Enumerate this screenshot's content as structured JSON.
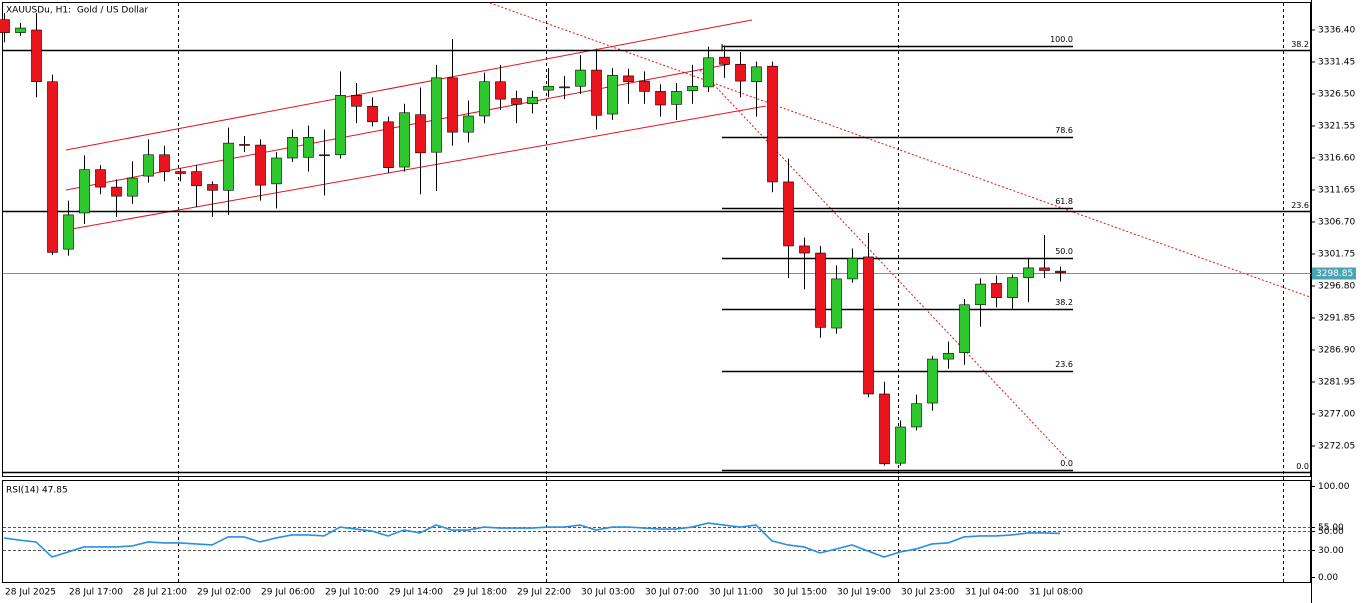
{
  "chart_data": {
    "type": "candlestick",
    "title": "XAUUSDu, H1:  Gold / US Dollar",
    "categories": [
      "28 Jul 2025",
      null,
      null,
      null,
      "28 Jul 17:00",
      null,
      null,
      null,
      "28 Jul 21:00",
      null,
      null,
      null,
      "29 Jul 02:00",
      null,
      null,
      null,
      "29 Jul 06:00",
      null,
      null,
      null,
      "29 Jul 10:00",
      null,
      null,
      null,
      "29 Jul 14:00",
      null,
      null,
      null,
      "29 Jul 18:00",
      null,
      null,
      null,
      "29 Jul 22:00",
      null,
      null,
      null,
      "30 Jul 03:00",
      null,
      null,
      null,
      "30 Jul 07:00",
      null,
      null,
      null,
      "30 Jul 11:00",
      null,
      null,
      null,
      "30 Jul 15:00",
      null,
      null,
      null,
      "30 Jul 19:00",
      null,
      null,
      null,
      "30 Jul 23:00",
      null,
      null,
      null,
      "31 Jul 04:00",
      null,
      null,
      null,
      "31 Jul 08:00",
      null,
      null
    ],
    "open": [
      3338.0,
      3336.0,
      3336.4,
      3328.4,
      3302.5,
      3308.1,
      3314.8,
      3312.1,
      3310.7,
      3313.8,
      3317.1,
      3314.5,
      3314.5,
      3312.5,
      3311.6,
      3318.7,
      3318.6,
      3312.6,
      3316.6,
      3316.7,
      3317.1,
      3317.1,
      3326.3,
      3324.6,
      3322.2,
      3315.2,
      3323.3,
      3317.5,
      3329.0,
      3320.6,
      3323.1,
      3328.4,
      3325.8,
      3325.0,
      3327.1,
      3327.6,
      3327.7,
      3330.2,
      3323.4,
      3329.3,
      3328.5,
      3326.9,
      3324.9,
      3327.0,
      3327.6,
      3332.2,
      3331.1,
      3328.4,
      3330.8,
      3312.9,
      3303.0,
      3301.9,
      3290.3,
      3297.9,
      3301.3,
      3280.1,
      3269.4,
      3275.0,
      3278.7,
      3285.5,
      3286.5,
      3293.9,
      3297.2,
      3295.0,
      3298.1,
      3299.6,
      3299.1
    ],
    "high": [
      3339.0,
      3337.5,
      3339.0,
      3329.5,
      3310.0,
      3317.0,
      3315.5,
      3313.3,
      3316.1,
      3319.5,
      3318.5,
      3315.0,
      3315.5,
      3313.0,
      3321.3,
      3320.0,
      3319.5,
      3317.5,
      3321.0,
      3321.6,
      3321.0,
      3330.0,
      3328.2,
      3326.0,
      3323.0,
      3325.0,
      3327.5,
      3331.0,
      3335.0,
      3325.5,
      3329.8,
      3331.0,
      3327.0,
      3327.0,
      3330.5,
      3329.3,
      3332.5,
      3333.5,
      3330.5,
      3330.4,
      3330.0,
      3328.0,
      3328.2,
      3331.0,
      3333.8,
      3334.0,
      3333.0,
      3331.5,
      3331.5,
      3316.5,
      3304.3,
      3303.0,
      3300.0,
      3302.6,
      3305.0,
      3282.0,
      3276.0,
      3280.0,
      3286.0,
      3288.2,
      3294.8,
      3298.0,
      3298.4,
      3298.6,
      3301.2,
      3304.7,
      3299.8
    ],
    "low": [
      3334.5,
      3335.5,
      3326.0,
      3301.6,
      3301.5,
      3306.4,
      3311.0,
      3307.5,
      3309.5,
      3312.8,
      3313.0,
      3313.0,
      3309.0,
      3307.5,
      3307.8,
      3317.5,
      3310.0,
      3308.8,
      3316.0,
      3314.5,
      3310.8,
      3316.5,
      3322.0,
      3321.5,
      3314.3,
      3314.5,
      3311.0,
      3311.5,
      3318.5,
      3319.0,
      3322.0,
      3324.0,
      3322.0,
      3323.5,
      3326.0,
      3325.7,
      3326.5,
      3321.0,
      3322.5,
      3325.0,
      3325.0,
      3323.0,
      3322.5,
      3325.0,
      3326.8,
      3329.0,
      3326.0,
      3323.0,
      3311.3,
      3298.0,
      3296.3,
      3288.8,
      3289.4,
      3297.3,
      3279.6,
      3269.0,
      3269.0,
      3274.5,
      3277.5,
      3284.0,
      3284.6,
      3290.5,
      3293.5,
      3293.3,
      3294.3,
      3298.0,
      3297.5
    ],
    "close": [
      3336.0,
      3336.7,
      3328.4,
      3302.0,
      3307.8,
      3314.8,
      3312.1,
      3310.7,
      3313.5,
      3317.1,
      3314.5,
      3314.2,
      3312.3,
      3311.6,
      3318.9,
      3318.6,
      3312.4,
      3316.6,
      3319.8,
      3319.8,
      3317.0,
      3326.3,
      3324.6,
      3322.2,
      3315.1,
      3323.6,
      3317.4,
      3329.0,
      3320.6,
      3323.1,
      3328.4,
      3325.7,
      3324.9,
      3326.0,
      3327.7,
      3327.5,
      3330.2,
      3323.2,
      3329.4,
      3328.4,
      3326.9,
      3324.8,
      3326.9,
      3327.7,
      3332.1,
      3331.1,
      3328.5,
      3330.7,
      3312.9,
      3303.0,
      3301.9,
      3290.4,
      3297.9,
      3301.1,
      3280.1,
      3269.3,
      3275.0,
      3278.6,
      3285.5,
      3286.4,
      3293.9,
      3297.1,
      3295.0,
      3298.1,
      3299.6,
      3299.2,
      3298.85
    ],
    "up_color": "#2ec82e",
    "down_color": "#e8141e",
    "ylim": [
      3267.26,
      3340.73
    ],
    "yticks": [
      {
        "value": 3336.4,
        "label": "3336.40"
      },
      {
        "value": 3331.45,
        "label": "3331.45"
      },
      {
        "value": 3326.5,
        "label": "3326.50"
      },
      {
        "value": 3321.55,
        "label": "3321.55"
      },
      {
        "value": 3316.6,
        "label": "3316.60"
      },
      {
        "value": 3311.65,
        "label": "3311.65"
      },
      {
        "value": 3306.7,
        "label": "3306.70"
      },
      {
        "value": 3301.75,
        "label": "3301.75"
      },
      {
        "value": 3296.8,
        "label": "3296.80"
      },
      {
        "value": 3291.85,
        "label": "3291.85"
      },
      {
        "value": 3286.9,
        "label": "3286.90"
      },
      {
        "value": 3281.95,
        "label": "3281.95"
      },
      {
        "value": 3277.0,
        "label": "3277.00"
      },
      {
        "value": 3272.05,
        "label": "3272.05"
      }
    ],
    "current_price": {
      "value": 3298.85,
      "label": "3298.85",
      "color": "#4ba3b4"
    },
    "levels": [
      {
        "value": 3333.3,
        "label": "38.2"
      },
      {
        "value": 3308.4,
        "label": "23.6"
      },
      {
        "value": 3268.0,
        "label": "0.0"
      }
    ],
    "fibonacci": [
      {
        "value": 3333.9,
        "label": "100.0"
      },
      {
        "value": 3319.8,
        "label": "78.6"
      },
      {
        "value": 3308.9,
        "label": "61.8"
      },
      {
        "value": 3301.1,
        "label": "50.0"
      },
      {
        "value": 3293.2,
        "label": "38.2"
      },
      {
        "value": 3283.6,
        "label": "23.6"
      },
      {
        "value": 3268.3,
        "label": "0.0"
      }
    ],
    "indicator": {
      "type": "line",
      "title": "RSI(14) 47.85",
      "color": "#2b8fe0",
      "values": [
        42.9,
        40.5,
        38.5,
        22.0,
        27.5,
        33.0,
        33.0,
        33.0,
        34.1,
        38.5,
        37.4,
        37.4,
        36.3,
        35.2,
        44.0,
        44.0,
        38.5,
        42.9,
        46.2,
        46.2,
        45.1,
        54.9,
        52.7,
        50.5,
        45.1,
        51.6,
        48.4,
        57.1,
        51.6,
        51.6,
        54.9,
        53.8,
        53.8,
        53.8,
        54.9,
        54.9,
        57.1,
        51.6,
        54.9,
        54.9,
        53.8,
        52.7,
        52.7,
        54.9,
        59.3,
        57.1,
        54.9,
        57.1,
        39.6,
        35.2,
        33.0,
        26.4,
        30.8,
        35.2,
        28.6,
        22.0,
        27.5,
        30.8,
        36.3,
        37.4,
        44.0,
        45.1,
        45.1,
        46.2,
        48.4,
        48.4,
        47.85
      ],
      "ylim": [
        -6.6,
        105.5
      ],
      "yticks": [
        {
          "value": 100,
          "label": "100.00"
        },
        {
          "value": 55,
          "label": "55.00"
        },
        {
          "value": 50,
          "label": "50.00"
        },
        {
          "value": 30,
          "label": "30.00"
        },
        {
          "value": 0,
          "label": "0.00"
        }
      ]
    }
  }
}
